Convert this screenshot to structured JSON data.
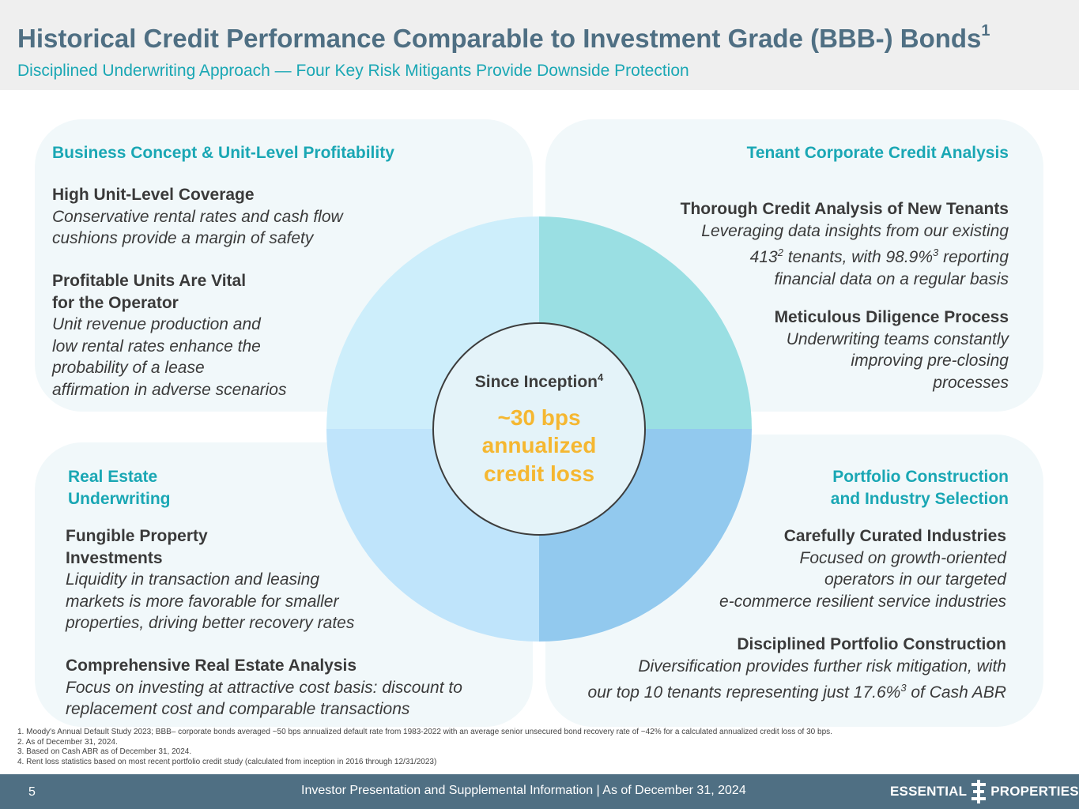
{
  "header": {
    "title": "Historical Credit Performance Comparable to Investment Grade (BBB-) Bonds",
    "title_sup": "1",
    "subtitle": "Disciplined Underwriting Approach — Four Key Risk Mitigants Provide Downside Protection"
  },
  "quadrants": {
    "top_left": {
      "title": "Business Concept & Unit-Level Profitability",
      "items": [
        {
          "heading": "High Unit-Level Coverage",
          "body_lines": [
            "Conservative rental rates and cash flow",
            "cushions provide a margin of safety"
          ]
        },
        {
          "heading_lines": [
            "Profitable Units Are Vital",
            "for the Operator"
          ],
          "body_lines": [
            "Unit revenue production and",
            "low rental rates enhance the",
            "probability of a lease",
            "affirmation in adverse scenarios"
          ]
        }
      ]
    },
    "top_right": {
      "title": "Tenant Corporate Credit Analysis",
      "items": [
        {
          "heading": "Thorough Credit Analysis of New Tenants",
          "line1": "Leveraging data insights from our existing",
          "line2_a": "413",
          "line2_sup_a": "2",
          "line2_b": " tenants, with 98.9%",
          "line2_sup_b": "3",
          "line2_c": " reporting",
          "line3": "financial data on a regular basis"
        },
        {
          "heading": "Meticulous Diligence Process",
          "body_lines": [
            "Underwriting teams constantly",
            "improving pre-closing",
            "processes"
          ]
        }
      ]
    },
    "bottom_left": {
      "title_lines": [
        "Real Estate",
        "Underwriting"
      ],
      "items": [
        {
          "heading_lines": [
            "Fungible Property",
            "Investments"
          ],
          "body_lines": [
            "Liquidity in transaction and leasing",
            "markets is more favorable for smaller",
            "properties, driving better recovery rates"
          ]
        },
        {
          "heading": "Comprehensive Real Estate Analysis",
          "body_lines": [
            "Focus on investing at attractive cost basis: discount to",
            "replacement cost and comparable transactions"
          ]
        }
      ]
    },
    "bottom_right": {
      "title_lines": [
        "Portfolio Construction",
        "and Industry Selection"
      ],
      "items": [
        {
          "heading": "Carefully Curated Industries",
          "body_lines": [
            "Focused on growth-oriented",
            "operators in our targeted",
            "e-commerce resilient service industries"
          ]
        },
        {
          "heading": "Disciplined Portfolio Construction",
          "line1": "Diversification provides further risk mitigation, with",
          "line2_a": "our top 10 tenants representing just 17.6%",
          "line2_sup": "3",
          "line2_b": " of Cash ABR"
        }
      ]
    }
  },
  "center": {
    "label": "Since Inception",
    "label_sup": "4",
    "metric_lines": [
      "~30 bps",
      "annualized",
      "credit loss"
    ]
  },
  "colors": {
    "title": "#4f6f83",
    "accent_teal": "#1aa7b4",
    "metric_gold": "#f5b731",
    "quad_tl": "#cdeefb",
    "quad_tr": "#9adfe3",
    "quad_bl": "#bfe4fb",
    "quad_br": "#92c9ee",
    "center_fill": "#e4f3f9",
    "footer_bg": "#4f6f83"
  },
  "footnotes": [
    "1.   Moody's Annual Default Study 2023; BBB– corporate bonds averaged ~50 bps annualized default rate from 1983-2022 with an average senior unsecured bond recovery rate of ~42% for a calculated annualized credit loss of 30 bps.",
    "2.  As of December 31, 2024.",
    "3.  Based on Cash ABR as of December 31, 2024.",
    "4.  Rent loss statistics based on most recent portfolio credit study (calculated from inception in 2016 through 12/31/2023)"
  ],
  "footer": {
    "page_number": "5",
    "text": "Investor Presentation and Supplemental Information |  As of December 31, 2024",
    "logo_left": "ESSENTIAL",
    "logo_right": "PROPERTIES"
  }
}
